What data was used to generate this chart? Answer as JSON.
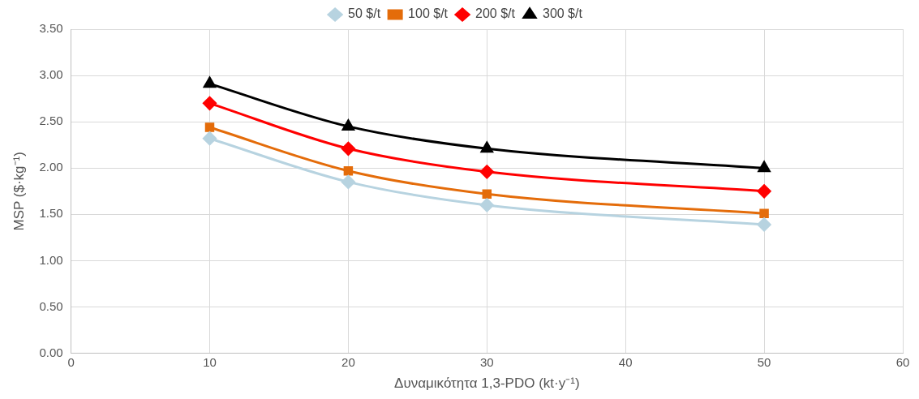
{
  "chart_data": {
    "type": "line",
    "xlabel": "Δυναμικότητα 1,3-PDO (kt·y⁻¹)",
    "ylabel": "MSP ($·kg⁻¹)",
    "x": [
      10,
      20,
      30,
      50
    ],
    "series": [
      {
        "name": "50 $/t",
        "color": "#b7d3e0",
        "marker": "diamond",
        "values": [
          2.32,
          1.85,
          1.6,
          1.39
        ]
      },
      {
        "name": "100 $/t",
        "color": "#e46c0a",
        "marker": "square",
        "values": [
          2.44,
          1.97,
          1.72,
          1.51
        ]
      },
      {
        "name": "200 $/t",
        "color": "#ff0000",
        "marker": "diamond",
        "values": [
          2.7,
          2.21,
          1.96,
          1.75
        ]
      },
      {
        "name": "300 $/t",
        "color": "#000000",
        "marker": "triangle",
        "values": [
          2.91,
          2.45,
          2.21,
          2.0
        ]
      }
    ],
    "xlim": [
      0,
      60
    ],
    "xticks": [
      0,
      10,
      20,
      30,
      40,
      50,
      60
    ],
    "ylim": [
      0,
      3.5
    ],
    "yticks": [
      {
        "value": 0,
        "label": "0.00"
      },
      {
        "value": 0.5,
        "label": "0.50"
      },
      {
        "value": 1,
        "label": "1.00"
      },
      {
        "value": 1.5,
        "label": "1.50"
      },
      {
        "value": 2,
        "label": "2.00"
      },
      {
        "value": 2.5,
        "label": "2.50"
      },
      {
        "value": 3,
        "label": "3.00"
      },
      {
        "value": 3.5,
        "label": "3.50"
      }
    ],
    "grid": true,
    "legend": "top",
    "line_style": "solid"
  }
}
